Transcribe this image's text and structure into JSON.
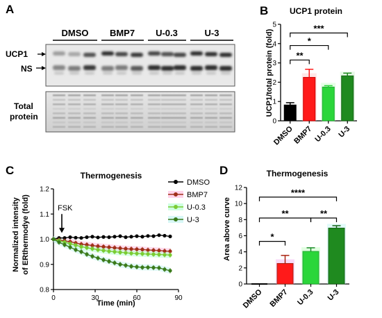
{
  "panels": {
    "a": "A",
    "b": "B",
    "c": "C",
    "d": "D"
  },
  "blot": {
    "groups": [
      "DMSO",
      "BMP7",
      "U-0.3",
      "U-3"
    ],
    "band_labels": [
      "UCP1",
      "NS"
    ],
    "total_label_line1": "Total",
    "total_label_line2": "protein"
  },
  "colors": {
    "dmso": "#000000",
    "bmp7": "#ff1a1a",
    "u03": "#2bd63a",
    "u3": "#1f8a1f",
    "bmp7_line": "#a0301a",
    "u03_line": "#7acc33",
    "u3_line": "#3a7a1a"
  },
  "charts": [
    {
      "id": "ucp1",
      "type": "bar",
      "title": "UCP1 protein",
      "ylabel": "UCP1/total protein (fold)",
      "categories": [
        "DMSO",
        "BMP7",
        "U-0.3",
        "U-3"
      ],
      "values": [
        0.82,
        2.25,
        1.75,
        2.33
      ],
      "errors": [
        0.12,
        0.42,
        0.07,
        0.14
      ],
      "ylim": [
        0,
        5
      ],
      "yticks": [
        "0",
        "1",
        "2",
        "3",
        "4",
        "5"
      ],
      "significance": [
        "**",
        "*",
        "***"
      ]
    },
    {
      "id": "thermo-line",
      "type": "line",
      "title": "Thermogenesis",
      "ylabel_line1": "Normalized intensity",
      "ylabel_line2": "of ERthermodye (fold)",
      "xlabel": "Time (min)",
      "xlim": [
        0,
        90
      ],
      "ylim": [
        0.8,
        1.2
      ],
      "xticks": [
        "0",
        "30",
        "60",
        "90"
      ],
      "yticks": [
        "0.8",
        "0.9",
        "1.0",
        "1.1",
        "1.2"
      ],
      "annotation": "FSK",
      "x": [
        0,
        4,
        8,
        12,
        16,
        20,
        24,
        28,
        32,
        36,
        40,
        44,
        48,
        52,
        56,
        60,
        64,
        68,
        72,
        76,
        80,
        84
      ],
      "series": [
        {
          "name": "DMSO",
          "values": [
            1.0,
            1.005,
            1.005,
            1.008,
            1.006,
            1.005,
            1.008,
            1.01,
            1.007,
            1.009,
            1.008,
            1.01,
            1.012,
            1.008,
            1.01,
            1.012,
            1.01,
            1.013,
            1.012,
            1.016,
            1.014,
            1.011
          ]
        },
        {
          "name": "BMP7",
          "values": [
            1.0,
            0.997,
            0.993,
            0.99,
            0.985,
            0.98,
            0.978,
            0.975,
            0.972,
            0.97,
            0.968,
            0.966,
            0.964,
            0.962,
            0.961,
            0.96,
            0.959,
            0.957,
            0.956,
            0.955,
            0.953,
            0.952
          ]
        },
        {
          "name": "U-0.3",
          "values": [
            1.0,
            0.994,
            0.988,
            0.982,
            0.976,
            0.97,
            0.966,
            0.962,
            0.958,
            0.955,
            0.952,
            0.95,
            0.948,
            0.946,
            0.944,
            0.943,
            0.942,
            0.941,
            0.94,
            0.939,
            0.938,
            0.937
          ]
        },
        {
          "name": "U-3",
          "values": [
            1.0,
            0.988,
            0.978,
            0.968,
            0.958,
            0.95,
            0.94,
            0.932,
            0.925,
            0.918,
            0.912,
            0.906,
            0.9,
            0.896,
            0.892,
            0.89,
            0.888,
            0.888,
            0.887,
            0.886,
            0.88,
            0.875
          ]
        }
      ]
    },
    {
      "id": "thermo-bar",
      "type": "bar",
      "title": "Thermogenesis",
      "ylabel": "Area above curve",
      "categories": [
        "DMSO",
        "BMP7",
        "U-0.3",
        "U-3"
      ],
      "values": [
        0,
        2.55,
        4.05,
        6.95
      ],
      "errors": [
        0,
        1.0,
        0.45,
        0.3
      ],
      "ylim": [
        0,
        12
      ],
      "yticks": [
        "0",
        "2",
        "4",
        "6",
        "8",
        "10",
        "12"
      ],
      "significance": [
        "*",
        "**",
        "**",
        "****"
      ]
    }
  ]
}
